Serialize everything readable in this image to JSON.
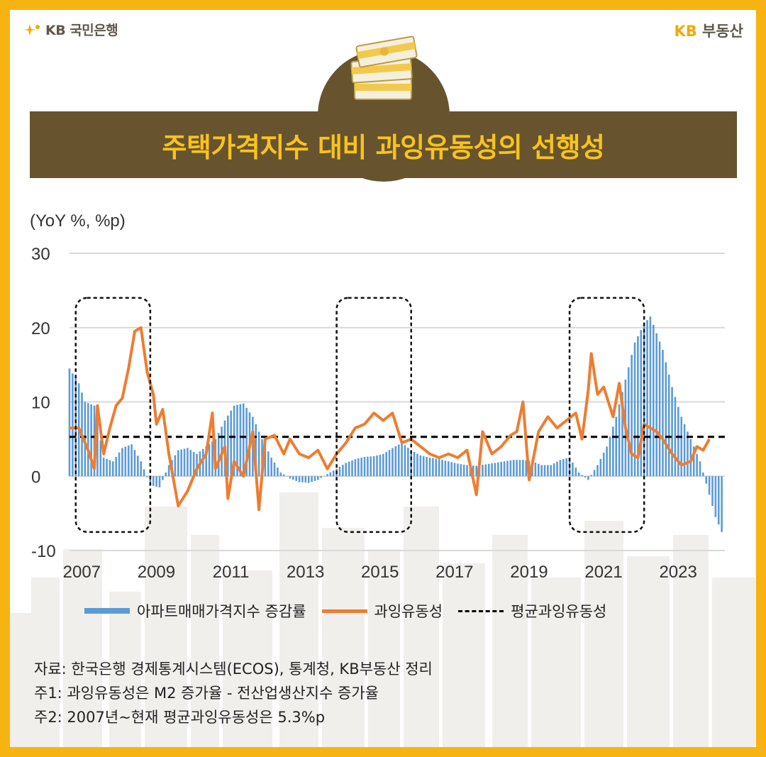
{
  "brand": {
    "left_text": "KB 국민은행",
    "right_kb": "KB",
    "right_text": "부동산"
  },
  "title": "주택가격지수 대비 과잉유동성의 선행성",
  "colors": {
    "frame": "#f6b312",
    "title_bg": "#67532e",
    "title_text": "#f8c31c",
    "bar": "#5b9bd5",
    "line": "#ed7d31",
    "avg": "#000000"
  },
  "chart_data": {
    "type": "bar+line",
    "unit_label": "(YoY %, %p)",
    "ylim": [
      -10,
      30
    ],
    "yticks": [
      "30",
      "20",
      "10",
      "0",
      "-10"
    ],
    "xticks": [
      "2007",
      "2009",
      "2011",
      "2013",
      "2015",
      "2017",
      "2019",
      "2021",
      "2023"
    ],
    "grid": true,
    "legend_position": "bottom",
    "series": [
      {
        "name": "아파트매매가격지수 증감률",
        "kind": "bar",
        "anchors": [
          [
            "2007-01",
            14.5
          ],
          [
            "2007-04",
            12.5
          ],
          [
            "2007-06",
            10
          ],
          [
            "2007-09",
            9.5
          ],
          [
            "2007-12",
            2.5
          ],
          [
            "2008-03",
            2
          ],
          [
            "2008-06",
            3.8
          ],
          [
            "2008-09",
            4.3
          ],
          [
            "2008-12",
            2
          ],
          [
            "2009-03",
            -1.2
          ],
          [
            "2009-06",
            -1.5
          ],
          [
            "2009-09",
            1.5
          ],
          [
            "2009-12",
            3.5
          ],
          [
            "2010-03",
            3.8
          ],
          [
            "2010-06",
            3
          ],
          [
            "2010-09",
            4
          ],
          [
            "2010-12",
            5
          ],
          [
            "2011-03",
            7.5
          ],
          [
            "2011-06",
            9.5
          ],
          [
            "2011-09",
            9.8
          ],
          [
            "2011-12",
            8
          ],
          [
            "2012-03",
            5
          ],
          [
            "2012-06",
            2.5
          ],
          [
            "2012-09",
            0.5
          ],
          [
            "2012-12",
            -0.3
          ],
          [
            "2013-03",
            -0.8
          ],
          [
            "2013-06",
            -0.9
          ],
          [
            "2013-09",
            -0.5
          ],
          [
            "2013-12",
            0.3
          ],
          [
            "2014-03",
            1
          ],
          [
            "2014-06",
            1.8
          ],
          [
            "2014-09",
            2.3
          ],
          [
            "2014-12",
            2.6
          ],
          [
            "2015-03",
            2.7
          ],
          [
            "2015-06",
            3
          ],
          [
            "2015-09",
            3.8
          ],
          [
            "2015-12",
            4.5
          ],
          [
            "2016-03",
            3.5
          ],
          [
            "2016-06",
            2.8
          ],
          [
            "2016-09",
            2.5
          ],
          [
            "2016-12",
            2.3
          ],
          [
            "2017-03",
            2
          ],
          [
            "2017-06",
            1.7
          ],
          [
            "2017-09",
            1.5
          ],
          [
            "2017-12",
            1.4
          ],
          [
            "2018-03",
            1.6
          ],
          [
            "2018-06",
            1.8
          ],
          [
            "2018-09",
            2
          ],
          [
            "2018-12",
            2.2
          ],
          [
            "2019-03",
            2.2
          ],
          [
            "2019-06",
            2
          ],
          [
            "2019-09",
            1.5
          ],
          [
            "2019-12",
            1.5
          ],
          [
            "2020-03",
            2.2
          ],
          [
            "2020-06",
            2.5
          ],
          [
            "2020-09",
            0.5
          ],
          [
            "2020-12",
            -0.5
          ],
          [
            "2021-03",
            1.5
          ],
          [
            "2021-06",
            4
          ],
          [
            "2021-09",
            8
          ],
          [
            "2021-12",
            13
          ],
          [
            "2022-03",
            18
          ],
          [
            "2022-06",
            20.5
          ],
          [
            "2022-08",
            21.5
          ],
          [
            "2022-12",
            17
          ],
          [
            "2023-03",
            12
          ],
          [
            "2023-06",
            8
          ],
          [
            "2023-09",
            5
          ],
          [
            "2023-12",
            2
          ],
          [
            "2024-02",
            -1
          ],
          [
            "2024-05",
            -5.5
          ],
          [
            "2024-07",
            -7.5
          ]
        ]
      },
      {
        "name": "과잉유동성",
        "kind": "line",
        "anchors": [
          [
            "2007-01",
            6.5
          ],
          [
            "2007-04",
            6.5
          ],
          [
            "2007-07",
            3.5
          ],
          [
            "2007-09",
            1
          ],
          [
            "2007-10",
            9.5
          ],
          [
            "2007-12",
            3
          ],
          [
            "2008-02",
            6.5
          ],
          [
            "2008-04",
            9.5
          ],
          [
            "2008-06",
            10.5
          ],
          [
            "2008-08",
            14.5
          ],
          [
            "2008-10",
            19.5
          ],
          [
            "2008-12",
            20
          ],
          [
            "2009-02",
            14
          ],
          [
            "2009-04",
            11
          ],
          [
            "2009-05",
            7
          ],
          [
            "2009-07",
            9
          ],
          [
            "2009-09",
            3
          ],
          [
            "2009-12",
            -4
          ],
          [
            "2010-03",
            -2
          ],
          [
            "2010-06",
            1
          ],
          [
            "2010-09",
            3
          ],
          [
            "2010-11",
            8.5
          ],
          [
            "2010-12",
            1
          ],
          [
            "2011-03",
            4
          ],
          [
            "2011-04",
            -3
          ],
          [
            "2011-06",
            2
          ],
          [
            "2011-09",
            0
          ],
          [
            "2011-12",
            6
          ],
          [
            "2012-02",
            -4.5
          ],
          [
            "2012-04",
            5
          ],
          [
            "2012-07",
            5.5
          ],
          [
            "2012-10",
            3
          ],
          [
            "2012-12",
            5
          ],
          [
            "2013-03",
            3
          ],
          [
            "2013-06",
            2.5
          ],
          [
            "2013-09",
            3.5
          ],
          [
            "2013-12",
            1
          ],
          [
            "2014-03",
            3
          ],
          [
            "2014-06",
            4.5
          ],
          [
            "2014-09",
            6.5
          ],
          [
            "2014-12",
            7
          ],
          [
            "2015-03",
            8.5
          ],
          [
            "2015-06",
            7.5
          ],
          [
            "2015-09",
            8.5
          ],
          [
            "2015-12",
            4.5
          ],
          [
            "2016-03",
            5
          ],
          [
            "2016-06",
            4
          ],
          [
            "2016-09",
            3
          ],
          [
            "2016-12",
            2.5
          ],
          [
            "2017-03",
            3
          ],
          [
            "2017-06",
            2.5
          ],
          [
            "2017-09",
            3.5
          ],
          [
            "2017-12",
            -2.5
          ],
          [
            "2018-02",
            6
          ],
          [
            "2018-05",
            3
          ],
          [
            "2018-08",
            4
          ],
          [
            "2018-11",
            5.5
          ],
          [
            "2019-01",
            6
          ],
          [
            "2019-03",
            10
          ],
          [
            "2019-05",
            -0.5
          ],
          [
            "2019-08",
            6
          ],
          [
            "2019-11",
            8
          ],
          [
            "2020-02",
            6.5
          ],
          [
            "2020-05",
            7.5
          ],
          [
            "2020-08",
            8.5
          ],
          [
            "2020-10",
            5
          ],
          [
            "2020-12",
            11.5
          ],
          [
            "2021-01",
            16.5
          ],
          [
            "2021-03",
            11
          ],
          [
            "2021-05",
            12
          ],
          [
            "2021-08",
            8
          ],
          [
            "2021-10",
            12.5
          ],
          [
            "2021-12",
            6.5
          ],
          [
            "2022-02",
            3
          ],
          [
            "2022-04",
            2.5
          ],
          [
            "2022-06",
            7
          ],
          [
            "2022-08",
            6.5
          ],
          [
            "2022-10",
            6
          ],
          [
            "2022-12",
            5
          ],
          [
            "2023-03",
            3
          ],
          [
            "2023-06",
            1.5
          ],
          [
            "2023-09",
            2
          ],
          [
            "2023-11",
            4
          ],
          [
            "2024-01",
            3.5
          ],
          [
            "2024-03",
            5
          ]
        ]
      },
      {
        "name": "평균과잉유동성",
        "kind": "dashed",
        "value": 5.3
      }
    ],
    "highlight_boxes": [
      {
        "from": "2007-03",
        "to": "2009-03",
        "ymin": -7.5,
        "ymax": 24
      },
      {
        "from": "2014-03",
        "to": "2016-03",
        "ymin": -7.5,
        "ymax": 24
      },
      {
        "from": "2020-06",
        "to": "2022-06",
        "ymin": -7.5,
        "ymax": 24
      }
    ]
  },
  "notes": {
    "source": "자료: 한국은행 경제통계시스템(ECOS), 통계청, KB부동산 정리",
    "note1": "주1: 과잉유동성은 M2 증가율 - 전산업생산지수 증가율",
    "note2": "주2: 2007년~현재 평균과잉유동성은 5.3%p"
  }
}
